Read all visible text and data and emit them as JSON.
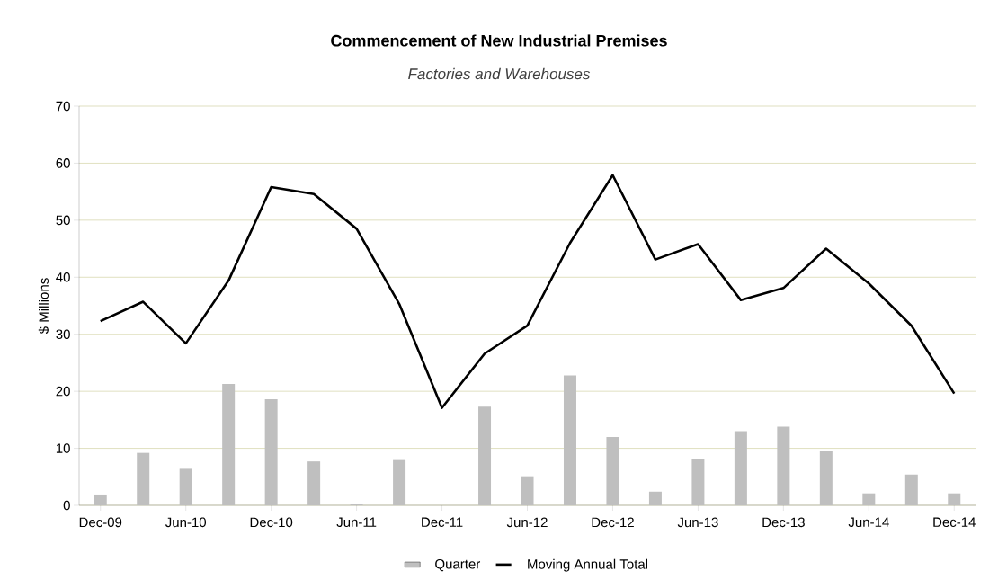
{
  "chart_data": {
    "type": "bar",
    "title": "Commencement of New Industrial Premises",
    "subtitle": "Factories and Warehouses",
    "ylabel": "$ Millions",
    "categories": [
      "Dec-09",
      null,
      "Jun-10",
      null,
      "Dec-10",
      null,
      "Jun-11",
      null,
      "Dec-11",
      null,
      "Jun-12",
      null,
      "Dec-12",
      null,
      "Jun-13",
      null,
      "Dec-13",
      null,
      "Jun-14",
      null,
      "Dec-14"
    ],
    "series": [
      {
        "name": "Quarter",
        "color": "#bfbfbf",
        "values": [
          1.9,
          9.2,
          6.4,
          21.3,
          18.6,
          7.7,
          0.3,
          8.1,
          0,
          17.3,
          5.1,
          22.8,
          12.0,
          2.4,
          8.2,
          13.0,
          13.8,
          9.5,
          2.1,
          5.4,
          2.1
        ]
      },
      {
        "name": "Moving Annual Total",
        "type": "line",
        "color": "#000000",
        "values": [
          32.3,
          35.7,
          28.4,
          39.4,
          55.8,
          54.6,
          48.5,
          35.3,
          17.1,
          26.6,
          31.5,
          46.0,
          57.9,
          43.1,
          45.8,
          36.0,
          38.1,
          45.0,
          38.9,
          31.5,
          19.6
        ]
      }
    ],
    "ylim": [
      0,
      70
    ],
    "yticks": [
      0,
      10,
      20,
      30,
      40,
      50,
      60,
      70
    ],
    "grid": "y",
    "legend": "bottom"
  }
}
